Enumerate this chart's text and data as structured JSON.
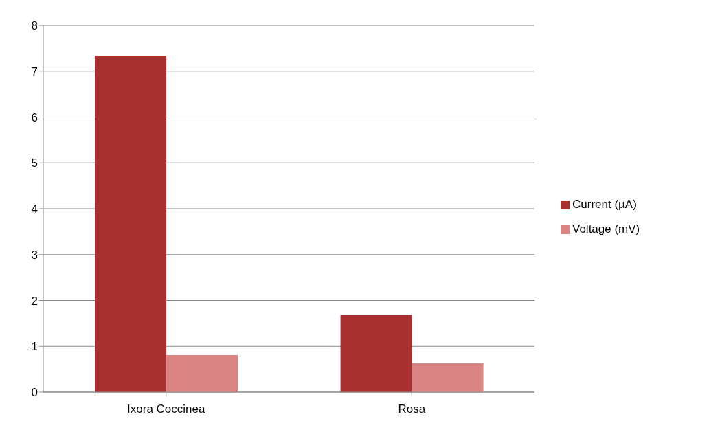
{
  "chart_data": {
    "type": "bar",
    "categories": [
      "Ixora Coccinea",
      "Rosa"
    ],
    "series": [
      {
        "name": "Current (µA)",
        "color": "#a8302e",
        "values": [
          7.34,
          1.68
        ]
      },
      {
        "name": "Voltage (mV)",
        "color": "#d98483",
        "values": [
          0.81,
          0.63
        ]
      }
    ],
    "ylim": [
      0,
      8
    ],
    "yticks": [
      0,
      1,
      2,
      3,
      4,
      5,
      6,
      7,
      8
    ],
    "grid": "y",
    "legend": "right"
  }
}
